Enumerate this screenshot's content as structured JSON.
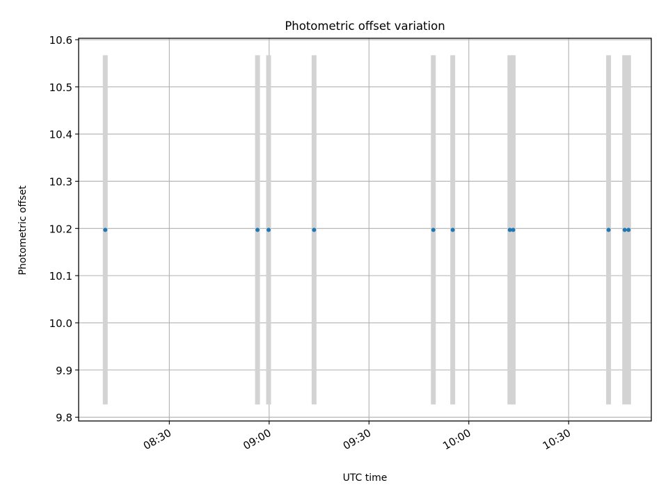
{
  "chart_data": {
    "type": "scatter",
    "title": "Photometric offset variation",
    "xlabel": "UTC time",
    "ylabel": "Photometric offset",
    "xlim": [
      "08:02:45",
      "10:54:50"
    ],
    "ylim": [
      9.792,
      10.603
    ],
    "xticks": [
      "08:30",
      "09:00",
      "09:30",
      "10:00",
      "10:30"
    ],
    "yticks": [
      "9.8",
      "9.9",
      "10.0",
      "10.1",
      "10.2",
      "10.3",
      "10.4",
      "10.5",
      "10.6"
    ],
    "grid": true,
    "series": [
      {
        "marker_color": "#1f77b4",
        "errorbar_color": "#d3d3d3",
        "x": [
          "08:10:45",
          "08:56:30",
          "08:59:50",
          "09:13:30",
          "09:49:20",
          "09:55:10",
          "10:12:20",
          "10:13:20",
          "10:42:00",
          "10:46:50",
          "10:48:00"
        ],
        "y": [
          10.197,
          10.197,
          10.197,
          10.197,
          10.197,
          10.197,
          10.197,
          10.197,
          10.197,
          10.197,
          10.197
        ],
        "yerr": [
          0.37,
          0.37,
          0.37,
          0.37,
          0.37,
          0.37,
          0.37,
          0.37,
          0.37,
          0.37,
          0.37
        ]
      }
    ]
  }
}
